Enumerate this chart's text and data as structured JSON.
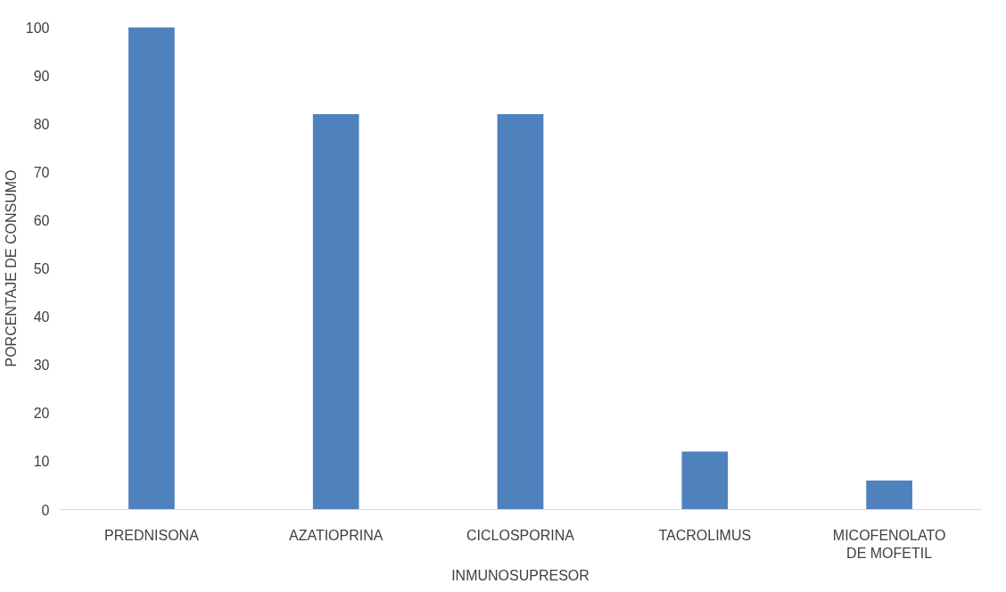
{
  "chart_data": {
    "type": "bar",
    "xlabel": "INMUNOSUPRESOR",
    "ylabel": "PORCENTAJE DE CONSUMO",
    "categories": [
      "PREDNISONA",
      "AZATIOPRINA",
      "CICLOSPORINA",
      "TACROLIMUS",
      "MICOFENOLATO DE MOFETIL"
    ],
    "values": [
      100,
      82,
      82,
      12,
      6
    ],
    "color": "#4f81bd",
    "ylim": [
      0,
      100
    ],
    "yticks": [
      0,
      10,
      20,
      30,
      40,
      50,
      60,
      70,
      80,
      90,
      100
    ],
    "grid": false
  }
}
